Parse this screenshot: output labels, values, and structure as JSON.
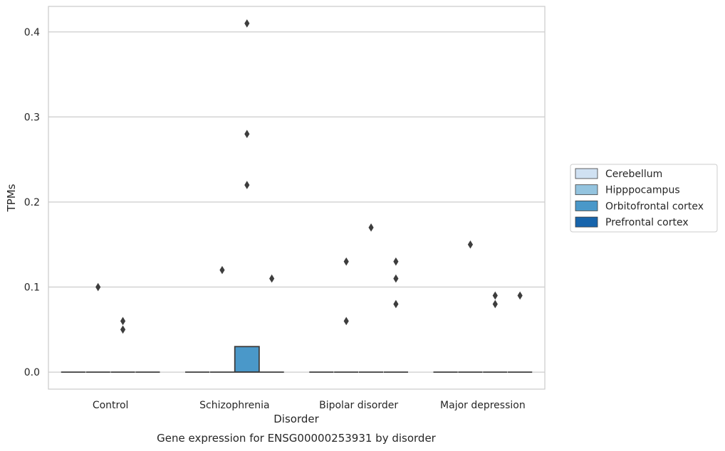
{
  "chart_data": {
    "type": "box",
    "title": "Gene expression for ENSG00000253931 by disorder",
    "xlabel": "Disorder",
    "ylabel": "TPMs",
    "ylim": [
      -0.02,
      0.43
    ],
    "yticks": [
      "0.0",
      "0.1",
      "0.2",
      "0.3",
      "0.4"
    ],
    "grid": true,
    "legend_position": "right",
    "categories": [
      "Control",
      "Schizophrenia",
      "Bipolar disorder",
      "Major depression"
    ],
    "series": [
      {
        "name": "Cerebellum",
        "color": "#d0e1f2",
        "boxes": [
          {
            "category": "Control",
            "q1": 0,
            "median": 0,
            "q3": 0,
            "outliers": []
          },
          {
            "category": "Schizophrenia",
            "q1": 0,
            "median": 0,
            "q3": 0,
            "outliers": []
          },
          {
            "category": "Bipolar disorder",
            "q1": 0,
            "median": 0,
            "q3": 0,
            "outliers": []
          },
          {
            "category": "Major depression",
            "q1": 0,
            "median": 0,
            "q3": 0,
            "outliers": []
          }
        ]
      },
      {
        "name": "Hipppocampus",
        "color": "#94c4df",
        "boxes": [
          {
            "category": "Control",
            "q1": 0,
            "median": 0,
            "q3": 0,
            "outliers": [
              0.1
            ]
          },
          {
            "category": "Schizophrenia",
            "q1": 0,
            "median": 0,
            "q3": 0,
            "outliers": [
              0.12
            ]
          },
          {
            "category": "Bipolar disorder",
            "q1": 0,
            "median": 0,
            "q3": 0,
            "outliers": [
              0.13,
              0.06
            ]
          },
          {
            "category": "Major depression",
            "q1": 0,
            "median": 0,
            "q3": 0,
            "outliers": [
              0.15
            ]
          }
        ]
      },
      {
        "name": "Orbitofrontal cortex",
        "color": "#4a98c9",
        "boxes": [
          {
            "category": "Control",
            "q1": 0,
            "median": 0,
            "q3": 0,
            "outliers": [
              0.06,
              0.05
            ]
          },
          {
            "category": "Schizophrenia",
            "q1": 0,
            "median": 0,
            "q3": 0.03,
            "outliers": [
              0.41,
              0.28,
              0.22
            ]
          },
          {
            "category": "Bipolar disorder",
            "q1": 0,
            "median": 0,
            "q3": 0,
            "outliers": [
              0.17
            ]
          },
          {
            "category": "Major depression",
            "q1": 0,
            "median": 0,
            "q3": 0,
            "outliers": [
              0.09,
              0.08
            ]
          }
        ]
      },
      {
        "name": "Prefrontal cortex",
        "color": "#1764ab",
        "boxes": [
          {
            "category": "Control",
            "q1": 0,
            "median": 0,
            "q3": 0,
            "outliers": []
          },
          {
            "category": "Schizophrenia",
            "q1": 0,
            "median": 0,
            "q3": 0,
            "outliers": [
              0.11
            ]
          },
          {
            "category": "Bipolar disorder",
            "q1": 0,
            "median": 0,
            "q3": 0,
            "outliers": [
              0.13,
              0.11,
              0.08
            ]
          },
          {
            "category": "Major depression",
            "q1": 0,
            "median": 0,
            "q3": 0,
            "outliers": [
              0.09
            ]
          }
        ]
      }
    ]
  }
}
